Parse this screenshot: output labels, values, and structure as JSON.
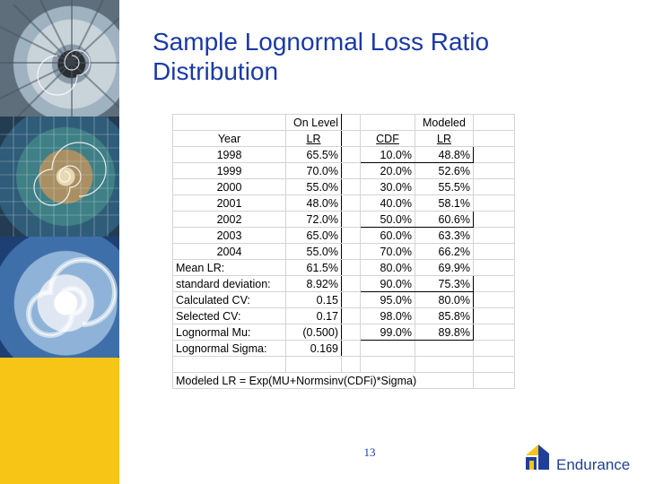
{
  "title_line1": "Sample Lognormal Loss Ratio",
  "title_line2": "Distribution",
  "table": {
    "rows": [
      [
        "",
        "On Level",
        "",
        "",
        "Modeled",
        ""
      ],
      [
        "Year",
        "LR",
        "",
        "CDF",
        "LR",
        ""
      ],
      [
        "1998",
        "65.5%",
        "",
        "10.0%",
        "48.8%",
        ""
      ],
      [
        "1999",
        "70.0%",
        "",
        "20.0%",
        "52.6%",
        ""
      ],
      [
        "2000",
        "55.0%",
        "",
        "30.0%",
        "55.5%",
        ""
      ],
      [
        "2001",
        "48.0%",
        "",
        "40.0%",
        "58.1%",
        ""
      ],
      [
        "2002",
        "72.0%",
        "",
        "50.0%",
        "60.6%",
        ""
      ],
      [
        "2003",
        "65.0%",
        "",
        "60.0%",
        "63.3%",
        ""
      ],
      [
        "2004",
        "55.0%",
        "",
        "70.0%",
        "66.2%",
        ""
      ],
      [
        "Mean LR:",
        "61.5%",
        "",
        "80.0%",
        "69.9%",
        ""
      ],
      [
        "standard deviation:",
        "8.92%",
        "",
        "90.0%",
        "75.3%",
        ""
      ],
      [
        "Calculated CV:",
        "0.15",
        "",
        "95.0%",
        "80.0%",
        ""
      ],
      [
        "Selected CV:",
        "0.17",
        "",
        "98.0%",
        "85.8%",
        ""
      ],
      [
        "Lognormal Mu:",
        "(0.500)",
        "",
        "99.0%",
        "89.8%",
        ""
      ],
      [
        "Lognormal Sigma:",
        "0.169",
        "",
        "",
        "",
        ""
      ],
      [
        "",
        "",
        "",
        "",
        "",
        ""
      ]
    ],
    "formula": "Modeled LR = Exp(MU+Normsinv(CDFi)*Sigma)"
  },
  "page_number": "13",
  "logo": {
    "name": "Endurance",
    "colors": {
      "blue": "#1f3f9a",
      "yellow": "#f6c516"
    }
  },
  "colors": {
    "title": "#1a3aa8"
  }
}
